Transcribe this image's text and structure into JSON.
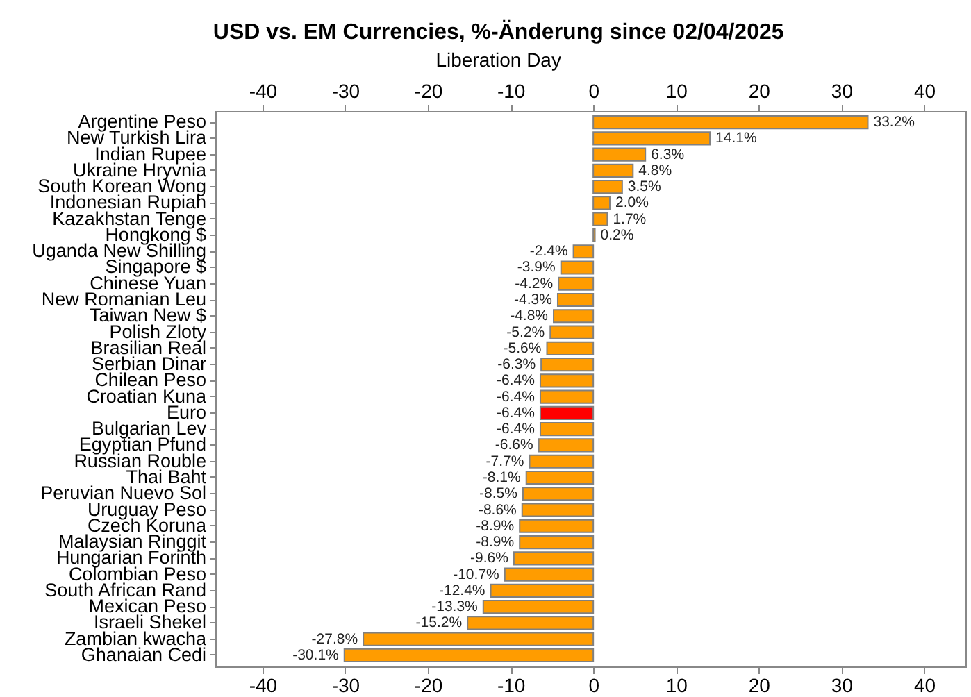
{
  "chart_data": {
    "type": "bar",
    "orientation": "horizontal",
    "title": "USD vs. EM Currencies, %-Änderung since 02/04/2025",
    "subtitle": "Liberation Day",
    "categories": [
      "Argentine Peso",
      "New Turkish Lira",
      "Indian Rupee",
      "Ukraine Hryvnia",
      "South Korean Wong",
      "Indonesian Rupiah",
      "Kazakhstan Tenge",
      "Hongkong $",
      "Uganda New Shilling",
      "Singapore $",
      "Chinese Yuan",
      "New Romanian Leu",
      "Taiwan New $",
      "Polish Zloty",
      "Brasilian Real",
      "Serbian Dinar",
      "Chilean Peso",
      "Croatian Kuna",
      "Euro",
      "Bulgarian Lev",
      "Egyptian Pfund",
      "Russian Rouble",
      "Thai Baht",
      "Peruvian Nuevo Sol",
      "Uruguay Peso",
      "Czech Koruna",
      "Malaysian Ringgit",
      "Hungarian Forinth",
      "Colombian Peso",
      "South African Rand",
      "Mexican Peso",
      "Israeli Shekel",
      "Zambian kwacha",
      "Ghanaian Cedi"
    ],
    "values": [
      33.2,
      14.1,
      6.3,
      4.8,
      3.5,
      2.0,
      1.7,
      0.2,
      -2.4,
      -3.9,
      -4.2,
      -4.3,
      -4.8,
      -5.2,
      -5.6,
      -6.3,
      -6.4,
      -6.4,
      -6.4,
      -6.4,
      -6.6,
      -7.7,
      -8.1,
      -8.5,
      -8.6,
      -8.9,
      -8.9,
      -9.6,
      -10.7,
      -12.4,
      -13.3,
      -15.2,
      -27.8,
      -30.1
    ],
    "value_labels": [
      "33.2%",
      "14.1%",
      "6.3%",
      "4.8%",
      "3.5%",
      "2.0%",
      "1.7%",
      "0.2%",
      "-2.4%",
      "-3.9%",
      "-4.2%",
      "-4.3%",
      "-4.8%",
      "-5.2%",
      "-5.6%",
      "-6.3%",
      "-6.4%",
      "-6.4%",
      "-6.4%",
      "-6.4%",
      "-6.6%",
      "-7.7%",
      "-8.1%",
      "-8.5%",
      "-8.6%",
      "-8.9%",
      "-8.9%",
      "-9.6%",
      "-10.7%",
      "-12.4%",
      "-13.3%",
      "-15.2%",
      "-27.8%",
      "-30.1%"
    ],
    "colors": [
      "#ff9c00",
      "#ff9c00",
      "#ff9c00",
      "#ff9c00",
      "#ff9c00",
      "#ff9c00",
      "#ff9c00",
      "#ff9c00",
      "#ff9c00",
      "#ff9c00",
      "#ff9c00",
      "#ff9c00",
      "#ff9c00",
      "#ff9c00",
      "#ff9c00",
      "#ff9c00",
      "#ff9c00",
      "#ff9c00",
      "#ff0000",
      "#ff9c00",
      "#ff9c00",
      "#ff9c00",
      "#ff9c00",
      "#ff9c00",
      "#ff9c00",
      "#ff9c00",
      "#ff9c00",
      "#ff9c00",
      "#ff9c00",
      "#ff9c00",
      "#ff9c00",
      "#ff9c00",
      "#ff9c00",
      "#ff9c00"
    ],
    "xlim": [
      -45.7,
      45
    ],
    "xticks": [
      -40,
      -30,
      -20,
      -10,
      0,
      10,
      20,
      30,
      40
    ],
    "x2lim": [
      -45.7,
      45
    ],
    "x2ticks": [
      -40,
      -30,
      -20,
      -10,
      0,
      10,
      20,
      30,
      40
    ]
  }
}
